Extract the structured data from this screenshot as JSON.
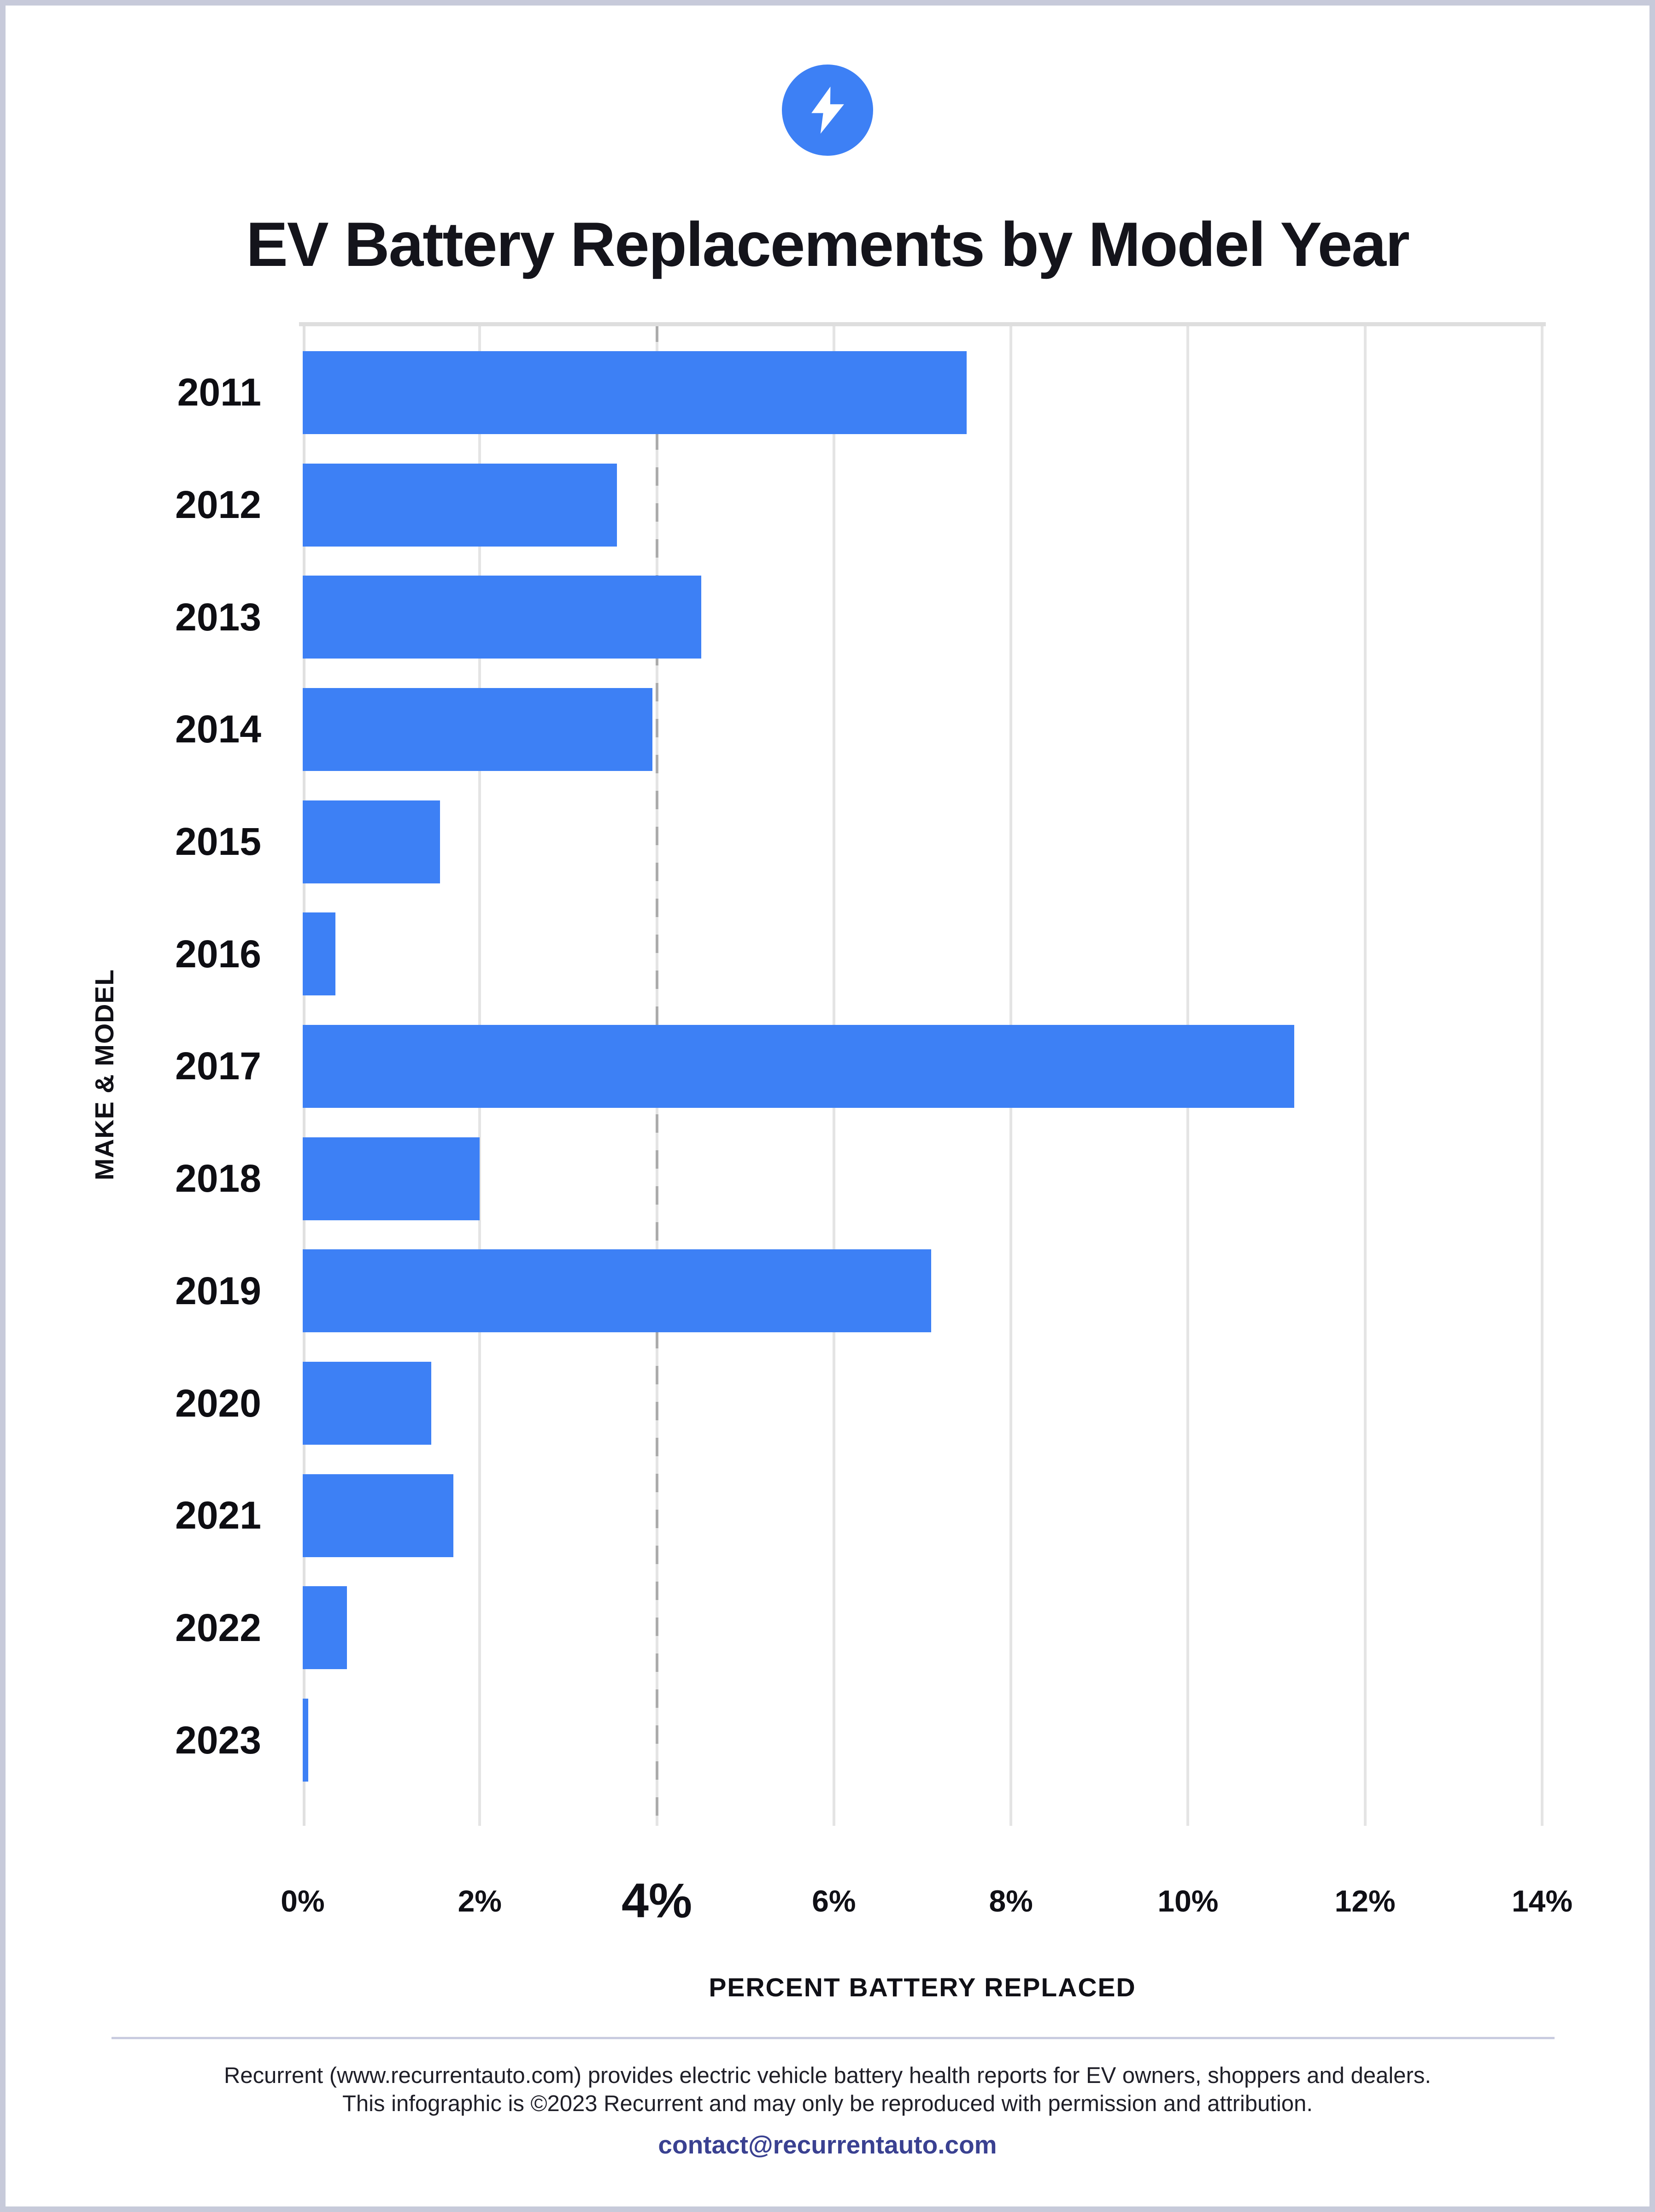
{
  "title": "EV Battery Replacements by Model Year",
  "logo": {
    "icon": "lightning-bolt-icon",
    "background_color": "#3d80f5",
    "bolt_color": "#ffffff"
  },
  "chart_data": {
    "type": "bar",
    "orientation": "horizontal",
    "title": "EV Battery Replacements by Model Year",
    "categories": [
      "2011",
      "2012",
      "2013",
      "2014",
      "2015",
      "2016",
      "2017",
      "2018",
      "2019",
      "2020",
      "2021",
      "2022",
      "2023"
    ],
    "values": [
      7.5,
      3.55,
      4.5,
      3.95,
      1.55,
      0.37,
      11.2,
      2.0,
      7.1,
      1.45,
      1.7,
      0.5,
      0.06
    ],
    "xlabel": "PERCENT BATTERY REPLACED",
    "ylabel": "MAKE & MODEL",
    "xlim": [
      0,
      14
    ],
    "xticks": [
      "0%",
      "2%",
      "4%",
      "6%",
      "8%",
      "10%",
      "12%",
      "14%"
    ],
    "emphasized_tick": "4%",
    "reference_line_x": 4,
    "bar_color": "#3d80f5",
    "grid": true,
    "gridline_color": "#e4e4e4",
    "reference_line_color": "#acacac"
  },
  "footer": {
    "line1": "Recurrent (www.recurrentauto.com) provides electric vehicle battery health reports for EV owners, shoppers and dealers.",
    "line2": "This infographic is ©2023 Recurrent and may only be reproduced with permission and attribution.",
    "contact": "contact@recurrentauto.com",
    "contact_color": "#3a4191"
  },
  "page": {
    "border_color": "#c7cada",
    "background": "#ffffff"
  }
}
